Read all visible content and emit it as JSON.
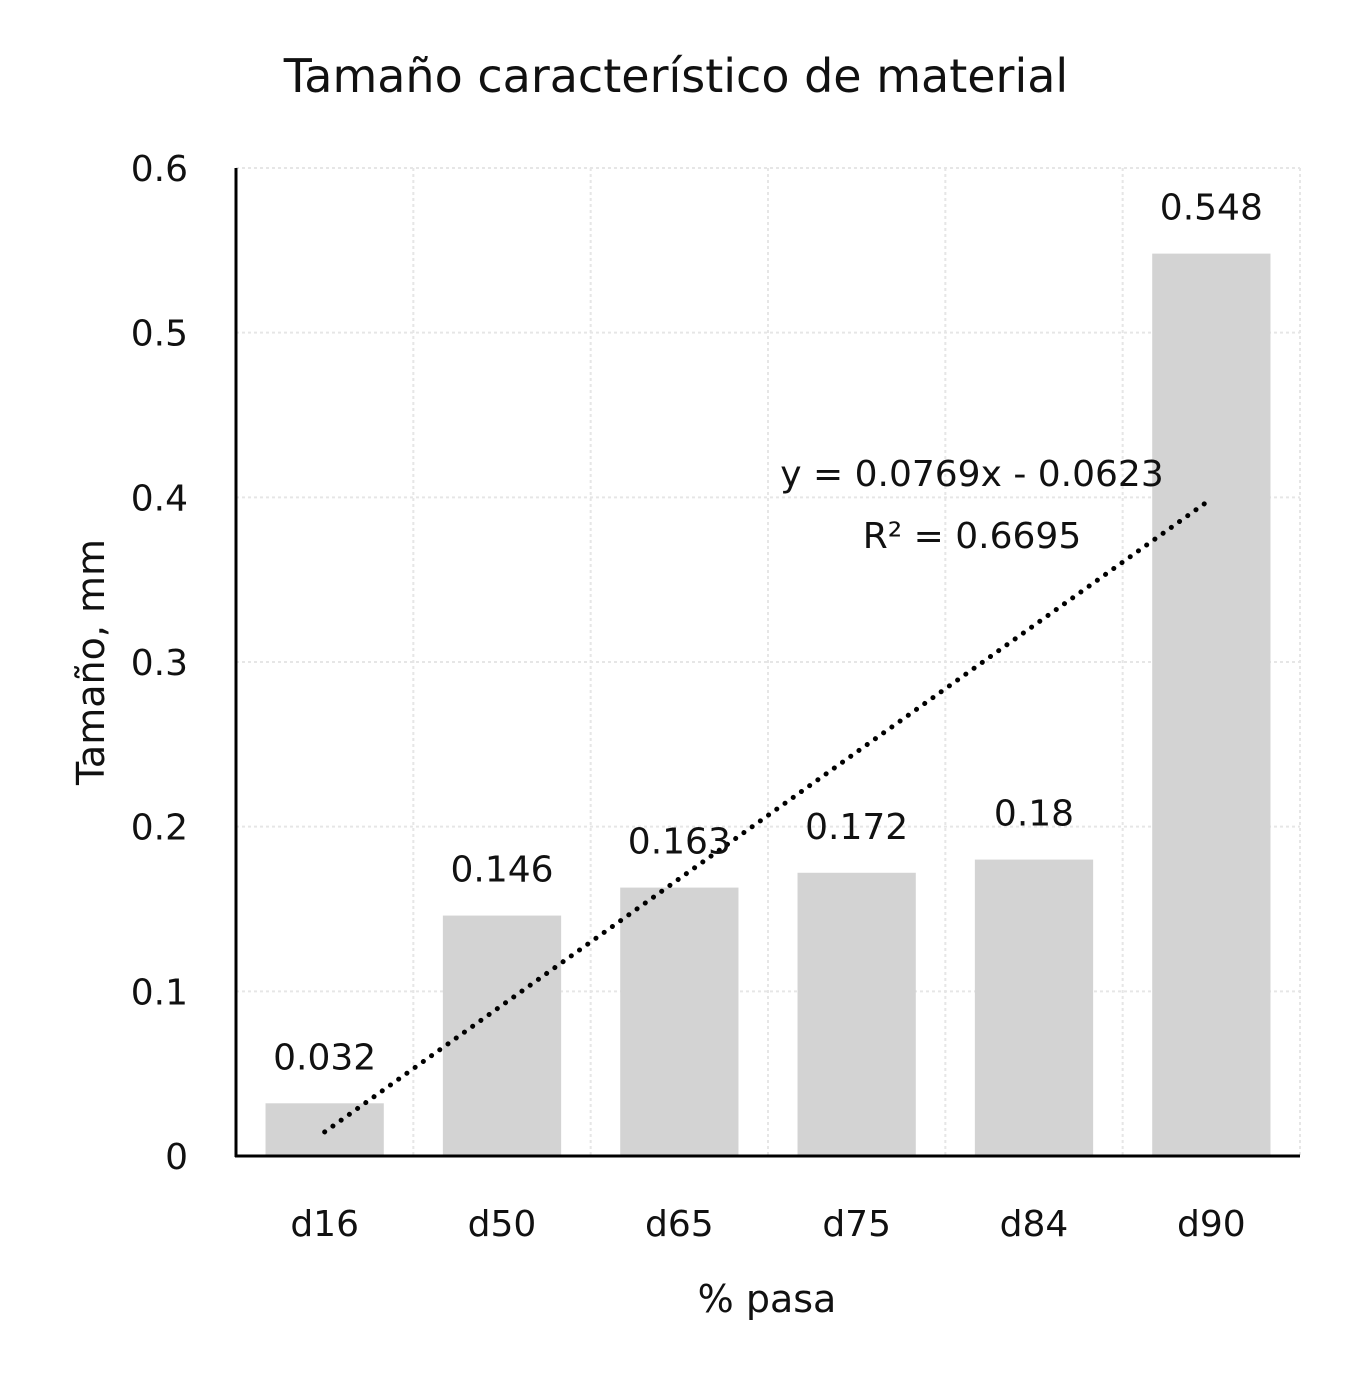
{
  "chart_data": {
    "type": "bar",
    "title": "Tamaño característico de material",
    "xlabel": "% pasa",
    "ylabel": "Tamaño, mm",
    "categories": [
      "d16",
      "d50",
      "d65",
      "d75",
      "d84",
      "d90"
    ],
    "values": [
      0.032,
      0.146,
      0.163,
      0.172,
      0.18,
      0.548
    ],
    "data_labels": [
      "0.032",
      "0.146",
      "0.163",
      "0.172",
      "0.18",
      "0.548"
    ],
    "ylim": [
      0,
      0.6
    ],
    "yticks": [
      0,
      0.1,
      0.2,
      0.3,
      0.4,
      0.5,
      0.6
    ],
    "ytick_labels": [
      "0",
      "0.1",
      "0.2",
      "0.3",
      "0.4",
      "0.5",
      "0.6"
    ],
    "grid": true,
    "bar_color": "#d3d3d3",
    "trendline": {
      "type": "linear",
      "slope": 0.0769,
      "intercept": -0.0623,
      "style": "dotted",
      "color": "#000000",
      "equation_label": "y = 0.0769x - 0.0623",
      "r2_label": "R² = 0.6695"
    }
  }
}
